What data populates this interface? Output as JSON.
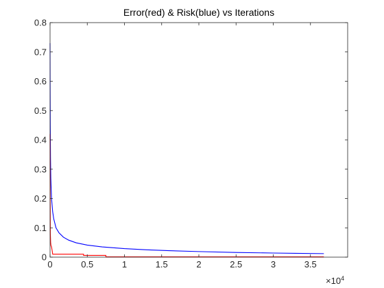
{
  "chart_data": {
    "type": "line",
    "title": "Error(red) & Risk(blue) vs Iterations",
    "xlabel": "",
    "ylabel": "",
    "x_exponent_label": "×10",
    "x_exponent_power": "4",
    "xlim": [
      0,
      40000
    ],
    "ylim": [
      0,
      0.8
    ],
    "x_ticks": [
      0,
      5000,
      10000,
      15000,
      20000,
      25000,
      30000,
      35000
    ],
    "x_tick_labels": [
      "0",
      "0.5",
      "1",
      "1.5",
      "2",
      "2.5",
      "3",
      "3.5"
    ],
    "y_ticks": [
      0,
      0.1,
      0.2,
      0.3,
      0.4,
      0.5,
      0.6,
      0.7,
      0.8
    ],
    "y_tick_labels": [
      "0",
      "0.1",
      "0.2",
      "0.3",
      "0.4",
      "0.5",
      "0.6",
      "0.7",
      "0.8"
    ],
    "grid": false,
    "series": [
      {
        "color": "#0000ff",
        "points": [
          [
            0,
            0.73
          ],
          [
            10,
            0.6
          ],
          [
            30,
            0.45
          ],
          [
            60,
            0.34
          ],
          [
            100,
            0.27
          ],
          [
            200,
            0.2
          ],
          [
            350,
            0.155
          ],
          [
            500,
            0.13
          ],
          [
            800,
            0.1
          ],
          [
            1200,
            0.083
          ],
          [
            1800,
            0.068
          ],
          [
            2500,
            0.058
          ],
          [
            3500,
            0.049
          ],
          [
            5000,
            0.041
          ],
          [
            7000,
            0.035
          ],
          [
            10000,
            0.029
          ],
          [
            13000,
            0.025
          ],
          [
            16000,
            0.022
          ],
          [
            20000,
            0.019
          ],
          [
            25000,
            0.016
          ],
          [
            30000,
            0.014
          ],
          [
            33000,
            0.013
          ],
          [
            36800,
            0.012
          ]
        ]
      },
      {
        "color": "#ff0000",
        "points": [
          [
            0,
            0.42
          ],
          [
            20,
            0.2
          ],
          [
            40,
            0.08
          ],
          [
            80,
            0.05
          ],
          [
            120,
            0.04
          ],
          [
            200,
            0.035
          ],
          [
            300,
            0.02
          ],
          [
            350,
            0.01
          ],
          [
            4500,
            0.01
          ],
          [
            4500,
            0.006
          ],
          [
            7500,
            0.006
          ],
          [
            7500,
            0.001
          ],
          [
            36800,
            0.001
          ]
        ]
      }
    ]
  }
}
